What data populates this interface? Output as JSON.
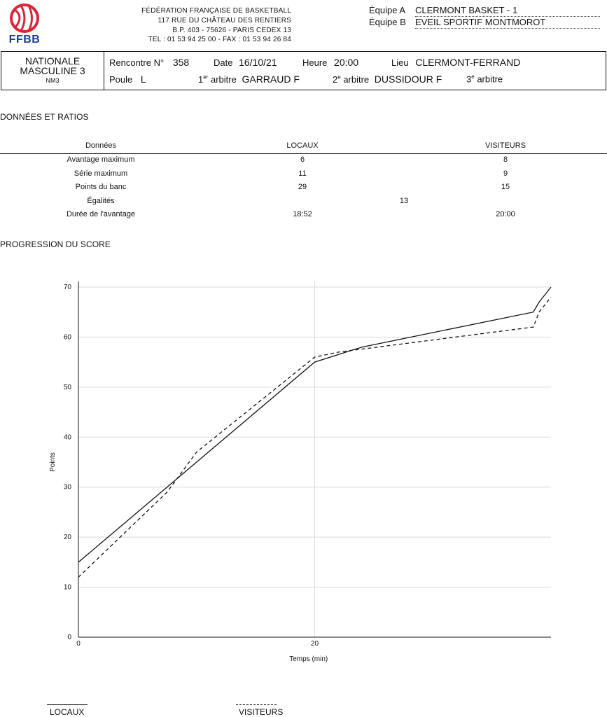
{
  "logo": {
    "text": "FFBB",
    "colors": {
      "primary": "#d62839",
      "secondary": "#1f3b8c"
    }
  },
  "federation": {
    "name": "FÉDÉRATION FRANÇAISE DE BASKETBALL",
    "address1": "117 RUE DU CHÂTEAU DES RENTIERS",
    "address2": "B.P. 403 - 75626 - PARIS CEDEX 13",
    "phone": "TEL : 01 53 94 25 00 - FAX : 01 53 94 26 84"
  },
  "teams": {
    "a_label": "Équipe A",
    "a_name": "CLERMONT BASKET - 1",
    "b_label": "Équipe B",
    "b_name": "EVEIL SPORTIF MONTMOROT"
  },
  "match": {
    "competition_line1": "NATIONALE",
    "competition_line2": "MASCULINE 3",
    "competition_code": "NM3",
    "rencontre_label": "Rencontre N°",
    "rencontre_value": "358",
    "date_label": "Date",
    "date_value": "16/10/21",
    "heure_label": "Heure",
    "heure_value": "20:00",
    "lieu_label": "Lieu",
    "lieu_value": "CLERMONT-FERRAND",
    "poule_label": "Poule",
    "poule_value": "L",
    "arb1_num": "1",
    "arb1_sup": "er",
    "arb1_label": "arbitre",
    "arb1_value": "GARRAUD F",
    "arb2_num": "2",
    "arb2_sup": "e",
    "arb2_label": "arbitre",
    "arb2_value": "DUSSIDOUR F",
    "arb3_num": "3",
    "arb3_sup": "e",
    "arb3_label": "arbitre"
  },
  "stats": {
    "title": "DONNÉES ET RATIOS",
    "headers": {
      "label": "Données",
      "locaux": "LOCAUX",
      "visiteurs": "VISITEURS"
    },
    "rows": [
      {
        "label": "Avantage maximum",
        "locaux": "6",
        "visiteurs": "8"
      },
      {
        "label": "Série maximum",
        "locaux": "11",
        "visiteurs": "9"
      },
      {
        "label": "Points du banc",
        "locaux": "29",
        "visiteurs": "15"
      },
      {
        "label": "Égalités",
        "shared": "13"
      },
      {
        "label": "Durée de l'avantage",
        "locaux": "18:52",
        "visiteurs": "20:00"
      }
    ]
  },
  "progression": {
    "title": "PROGRESSION DU SCORE"
  },
  "chart_data": {
    "type": "line",
    "xlabel": "Temps (min)",
    "ylabel": "Points",
    "xlim": [
      0,
      40
    ],
    "ylim": [
      0,
      70
    ],
    "xticks": [
      0,
      20
    ],
    "yticks": [
      0,
      10,
      20,
      30,
      40,
      50,
      60,
      70
    ],
    "grid": true,
    "series": [
      {
        "name": "LOCAUX",
        "style": "solid",
        "x": [
          0,
          7.5,
          20,
          24,
          38.5,
          39,
          40
        ],
        "y": [
          15,
          30,
          55,
          58,
          65,
          67,
          70
        ]
      },
      {
        "name": "VISITEURS",
        "style": "dashed",
        "x": [
          0,
          7.5,
          10,
          20,
          22,
          38.5,
          39,
          40
        ],
        "y": [
          12,
          29,
          37,
          56,
          57,
          62,
          65,
          68
        ]
      }
    ]
  },
  "legend": {
    "locaux": "LOCAUX",
    "visiteurs": "VISITEURS"
  }
}
